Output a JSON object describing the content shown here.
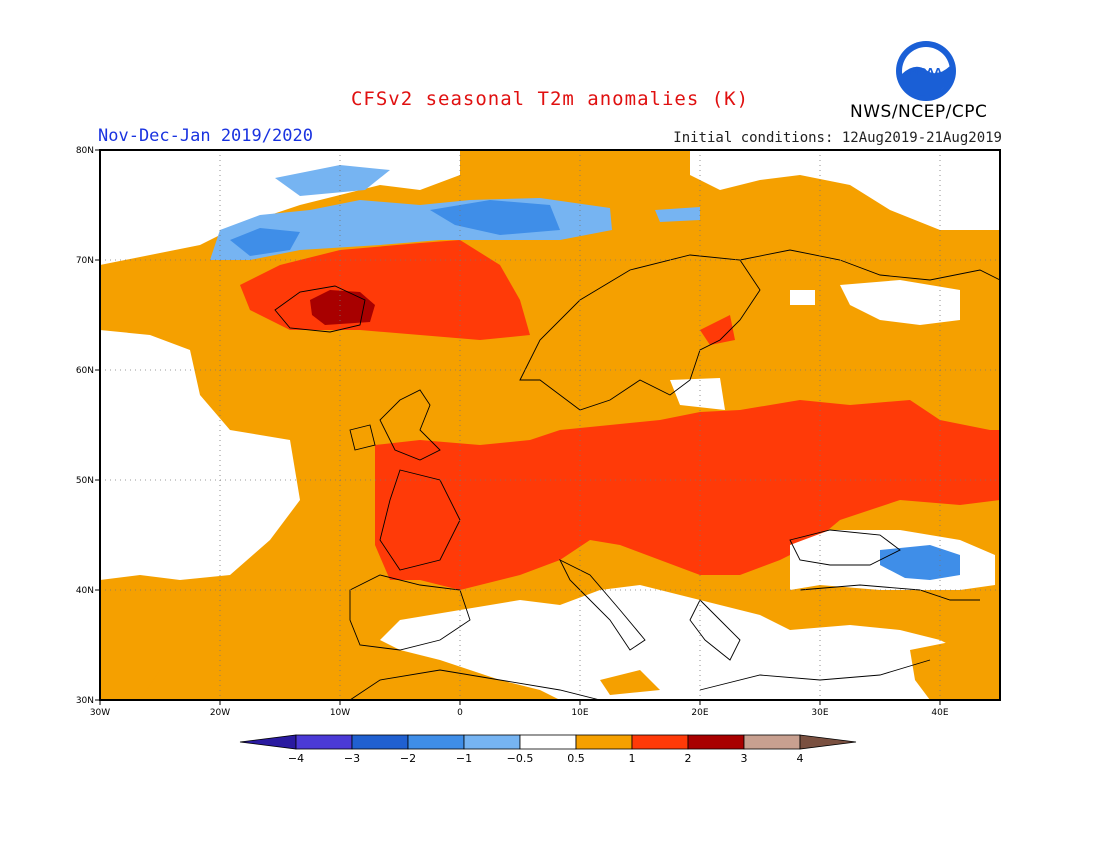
{
  "figure": {
    "title": "CFSv2 seasonal T2m anomalies (K)",
    "period": "Nov-Dec-Jan 2019/2020",
    "initial_conditions": "Initial conditions: 12Aug2019-21Aug2019",
    "agency": "NWS/NCEP/CPC",
    "logo_text": "NOAA"
  },
  "map": {
    "lon_range": [
      -30,
      45
    ],
    "lat_range": [
      30,
      80
    ],
    "lat_ticks": [
      "30N",
      "40N",
      "50N",
      "60N",
      "70N",
      "80N"
    ],
    "lon_ticks": [
      "30W",
      "20W",
      "10W",
      "0",
      "10E",
      "20E",
      "30E",
      "40E"
    ],
    "grid": "dotted",
    "regions": [
      {
        "name": "Iceland / North Atlantic",
        "anomaly_class": "1 to 3 K"
      },
      {
        "name": "Central and Eastern Europe",
        "anomaly_class": "1 to 2 K"
      },
      {
        "name": "Scandinavia",
        "anomaly_class": "0.5 to 1 K"
      },
      {
        "name": "Svalbard / Barents Sea",
        "anomaly_class": "-2 to -0.5 K"
      },
      {
        "name": "Mediterranean / North Africa",
        "anomaly_class": "-0.5 to 0.5 K"
      },
      {
        "name": "Black Sea east",
        "anomaly_class": "-2 to -1 K"
      }
    ]
  },
  "colorbar": {
    "labels": [
      "-4",
      "-3",
      "-2",
      "-1",
      "-0.5",
      "0.5",
      "1",
      "2",
      "3",
      "4"
    ],
    "colors": [
      "#2a1aa0",
      "#4b3ad6",
      "#2060d0",
      "#3f8ee8",
      "#76b4f2",
      "#ffffff",
      "#f5a000",
      "#ff3a08",
      "#a80000",
      "#c8a090",
      "#7a5040"
    ]
  }
}
